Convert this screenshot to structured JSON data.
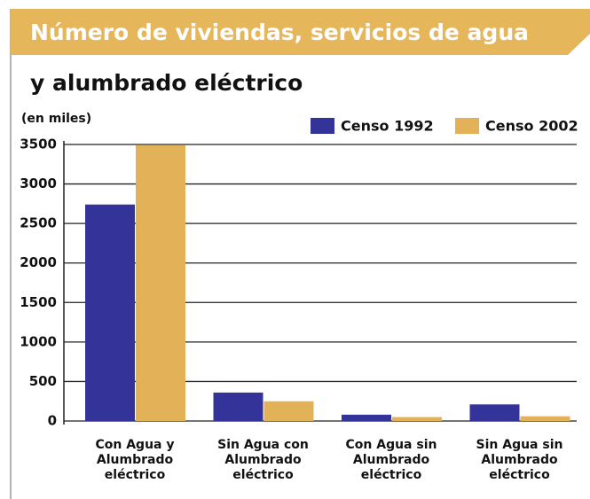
{
  "chart_data": {
    "type": "bar",
    "title": [
      "Número de viviendas, servicios de agua",
      "y alumbrado eléctrico"
    ],
    "y_label": "(en miles)",
    "categories": [
      "Con Agua y Alumbrado eléctrico",
      "Sin Agua con Alumbrado eléctrico",
      "Con Agua sin Alumbrado eléctrico",
      "Sin Agua sin Alumbrado eléctrico"
    ],
    "series": [
      {
        "name": "Censo 1992",
        "color": "#33339a",
        "values": [
          2740,
          360,
          80,
          210
        ]
      },
      {
        "name": "Censo 2002",
        "color": "#e3b157",
        "values": [
          3490,
          250,
          50,
          60
        ]
      }
    ],
    "ylim": [
      0,
      3500
    ],
    "yticks": [
      0,
      500,
      1000,
      1500,
      2000,
      2500,
      3000,
      3500
    ],
    "grid": true,
    "legend": "top-right"
  }
}
